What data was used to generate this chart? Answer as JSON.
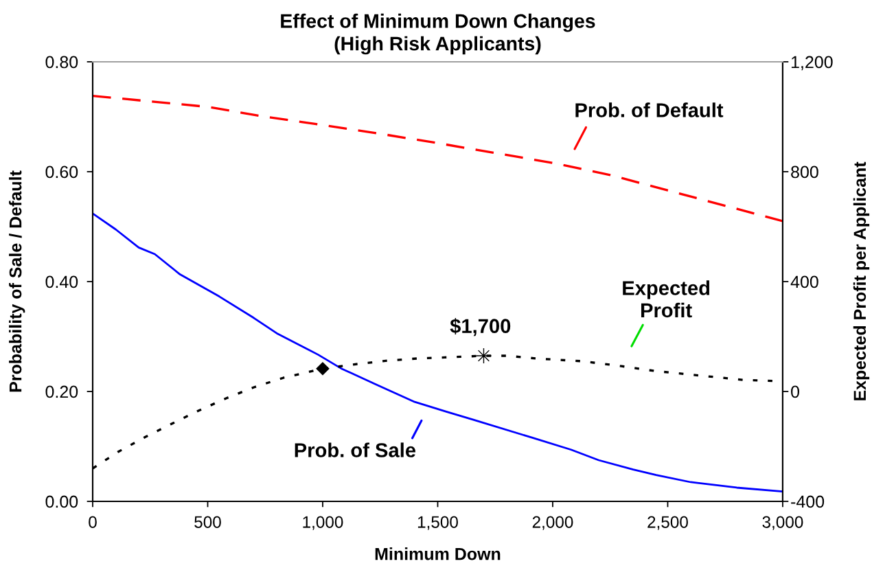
{
  "chart_data": {
    "type": "line",
    "title": "Effect of Minimum Down Changes\n(High Risk Applicants)",
    "xlabel": "Minimum Down",
    "ylabel": "Probability of Sale / Default",
    "y2label": "Expected Profit per Applicant",
    "xlim": [
      0,
      3000
    ],
    "xticks": [
      0,
      500,
      {
        "value": 1000,
        "label": "1,000"
      },
      {
        "value": 1500,
        "label": "1,500"
      },
      {
        "value": 2000,
        "label": "2,000"
      },
      {
        "value": 2500,
        "label": "2,500"
      },
      {
        "value": 3000,
        "label": "3,000"
      }
    ],
    "ylim": [
      0,
      0.8
    ],
    "yticks": [
      {
        "value": 0,
        "label": "0.00"
      },
      {
        "value": 0.2,
        "label": "0.20"
      },
      {
        "value": 0.4,
        "label": "0.40"
      },
      {
        "value": 0.6,
        "label": "0.60"
      },
      {
        "value": 0.8,
        "label": "0.80"
      }
    ],
    "y2lim": [
      -400,
      1200
    ],
    "y2ticks": [
      -400,
      0,
      400,
      800,
      {
        "value": 1200,
        "label": "1,200"
      }
    ],
    "series": [
      {
        "color": "#ff0000",
        "line_style": "dashed",
        "x": [
          0,
          250,
          500,
          750,
          1000,
          1250,
          1500,
          1750,
          2000,
          2250,
          2500,
          2750,
          3000
        ],
        "values": [
          0.738,
          0.728,
          0.718,
          0.7,
          0.685,
          0.669,
          0.652,
          0.634,
          0.616,
          0.594,
          0.566,
          0.538,
          0.51
        ]
      },
      {
        "color": "#0000ff",
        "line_style": "solid",
        "x": [
          0,
          100,
          200,
          270,
          380,
          550,
          700,
          800,
          980,
          1080,
          1230,
          1400,
          1540,
          1660,
          1910,
          2080,
          2200,
          2350,
          2450,
          2600,
          2800,
          3000
        ],
        "values": [
          0.524,
          0.495,
          0.462,
          0.45,
          0.413,
          0.373,
          0.334,
          0.306,
          0.267,
          0.242,
          0.213,
          0.181,
          0.163,
          0.148,
          0.116,
          0.094,
          0.075,
          0.058,
          0.048,
          0.035,
          0.025,
          0.018
        ]
      },
      {
        "color": "#000000",
        "line_style": "dotted",
        "axis": "y2",
        "x": [
          0,
          110,
          230,
          350,
          460,
          580,
          700,
          830,
          1000,
          1150,
          1280,
          1410,
          1530,
          1700,
          1800,
          1930,
          2130,
          2300,
          2440,
          2640,
          2830,
          3000
        ],
        "values": [
          -280,
          -220,
          -165,
          -115,
          -70,
          -25,
          15,
          50,
          83,
          100,
          112,
          120,
          124,
          130,
          130,
          120,
          110,
          92,
          75,
          58,
          42,
          37
        ]
      },
      {
        "type": "scatter",
        "color": "#000000",
        "marker": "diamond",
        "axis": "y2",
        "x": [
          1000
        ],
        "values": [
          83
        ]
      },
      {
        "type": "scatter",
        "color": "#000000",
        "marker": "star",
        "axis": "y2",
        "x": [
          1700
        ],
        "values": [
          130
        ]
      }
    ],
    "annotations": [
      "Prob. of Default",
      "Expected\nProfit",
      "$1,700",
      "Prob. of Sale"
    ]
  }
}
